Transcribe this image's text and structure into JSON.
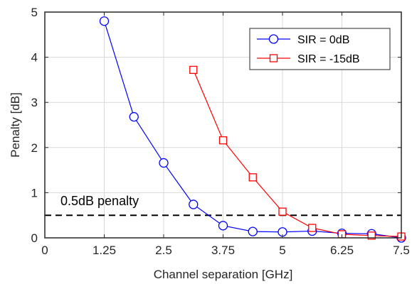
{
  "chart_data": {
    "type": "line",
    "xlabel": "Channel separation [GHz]",
    "ylabel": "Penalty [dB]",
    "xlim": [
      0,
      7.5
    ],
    "ylim": [
      0,
      5
    ],
    "xticks": [
      0,
      1.25,
      2.5,
      3.75,
      5,
      6.25,
      7.5
    ],
    "xtick_labels": [
      "0",
      "1.25",
      "2.5",
      "3.75",
      "5",
      "6.25",
      "7.5"
    ],
    "yticks": [
      0,
      1,
      2,
      3,
      4,
      5
    ],
    "ytick_labels": [
      "0",
      "1",
      "2",
      "3",
      "4",
      "5"
    ],
    "grid": true,
    "legend_position": "top-right",
    "series": [
      {
        "name": "SIR = 0dB",
        "color": "#0000ff",
        "marker": "circle",
        "x": [
          1.25,
          1.875,
          2.5,
          3.125,
          3.75,
          4.375,
          5.0,
          5.625,
          6.25,
          6.875,
          7.5
        ],
        "y": [
          4.8,
          2.68,
          1.66,
          0.74,
          0.27,
          0.14,
          0.13,
          0.15,
          0.1,
          0.09,
          0.0
        ]
      },
      {
        "name": "SIR = -15dB",
        "color": "#ff0000",
        "marker": "square",
        "x": [
          3.125,
          3.75,
          4.375,
          5.0,
          5.625,
          6.25,
          6.875,
          7.5
        ],
        "y": [
          3.72,
          2.16,
          1.34,
          0.58,
          0.22,
          0.08,
          0.05,
          0.03
        ]
      }
    ],
    "threshold": {
      "y": 0.5,
      "label": "0.5dB penalty",
      "style": "dashed",
      "color": "#000000"
    }
  }
}
